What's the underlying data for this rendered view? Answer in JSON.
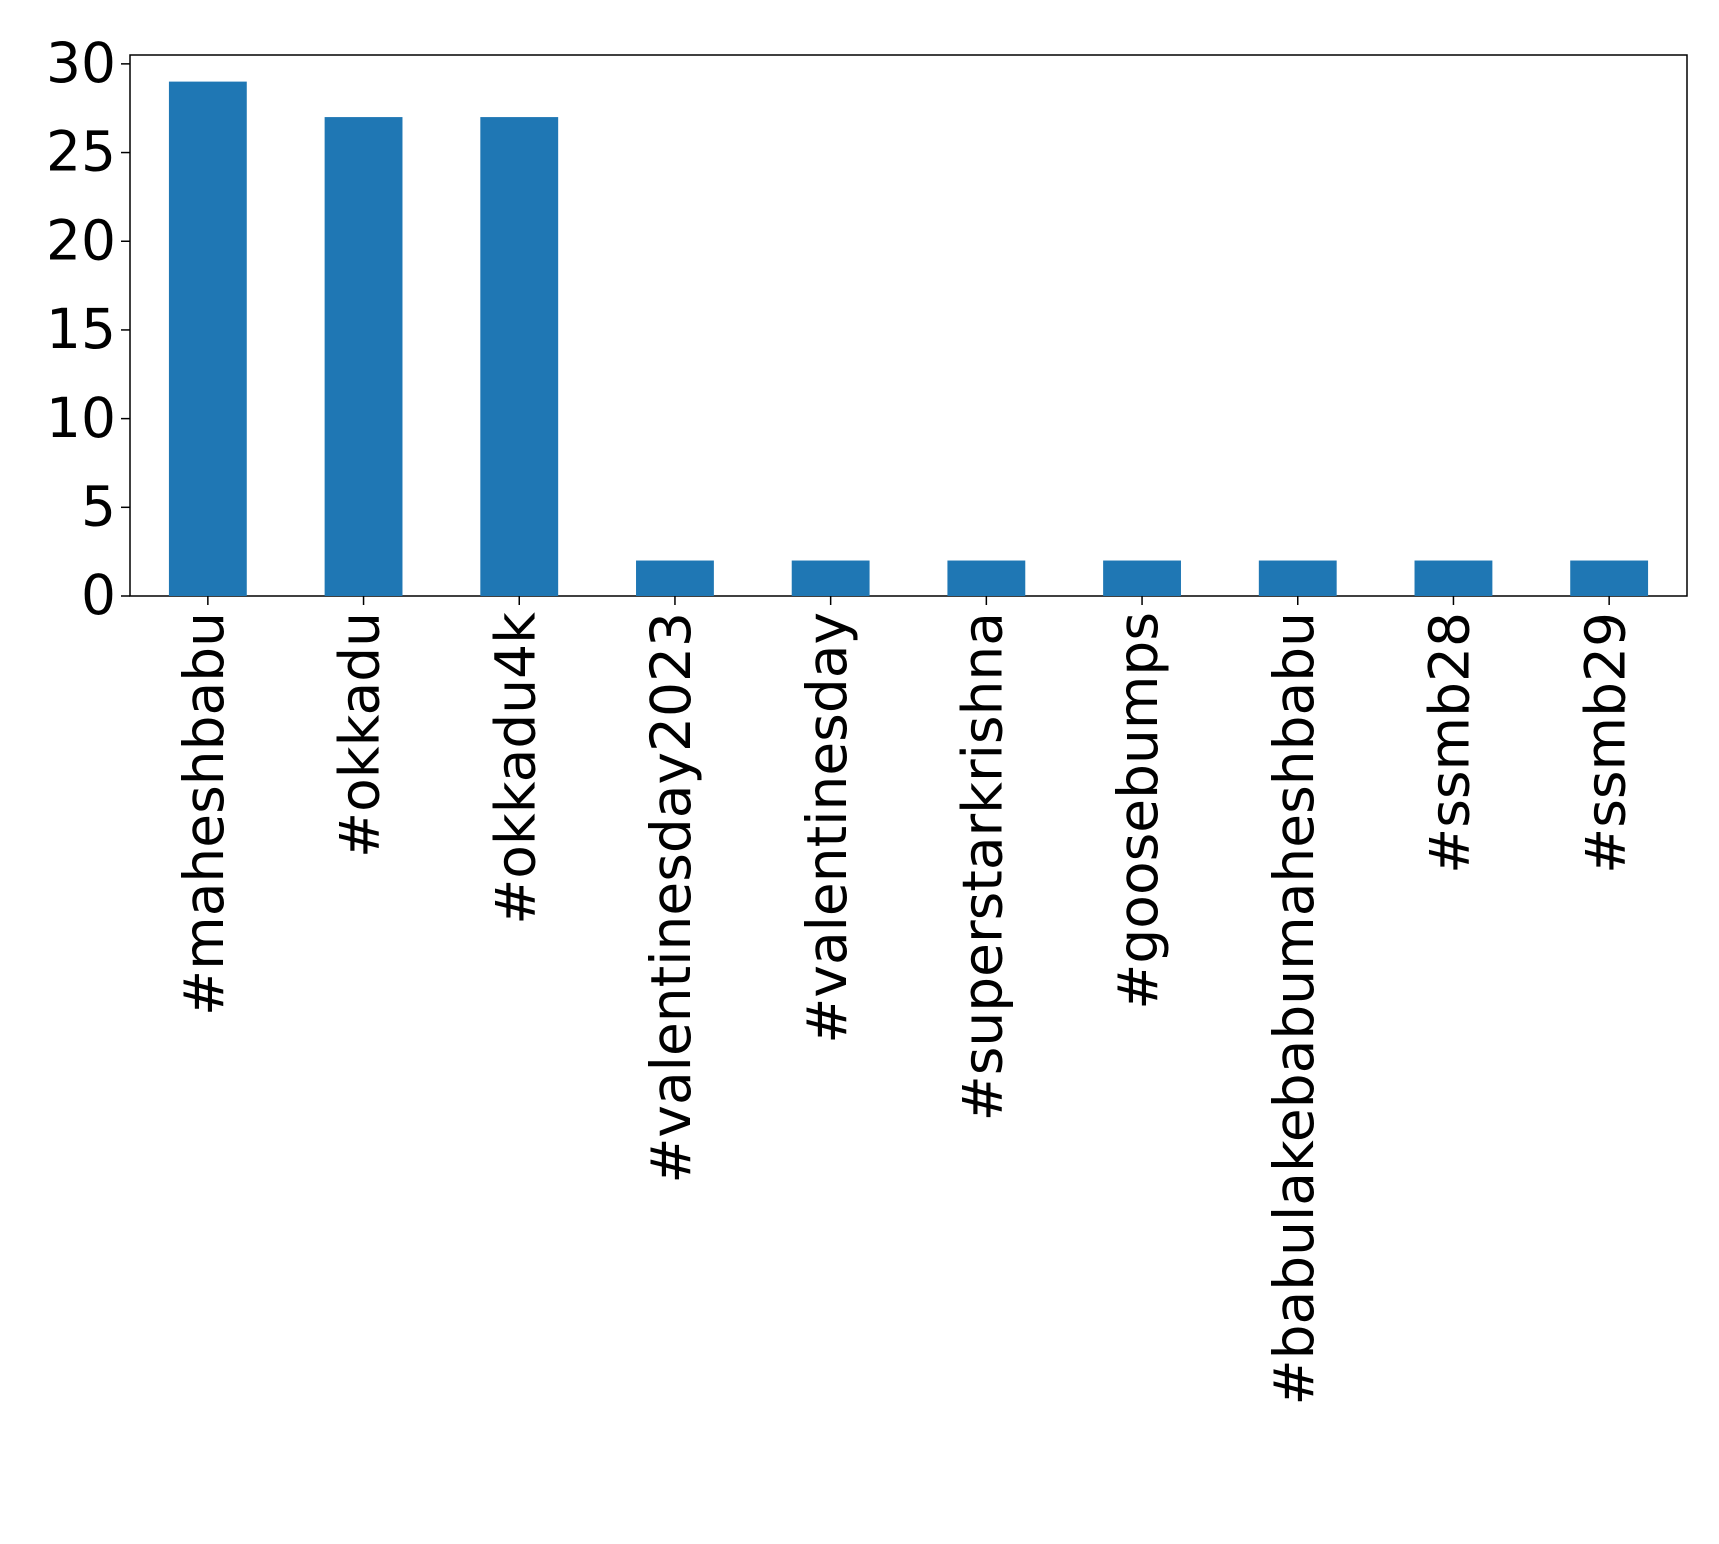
{
  "chart_data": {
    "type": "bar",
    "categories": [
      "#maheshbabu",
      "#okkadu",
      "#okkadu4k",
      "#valentinesday2023",
      "#valentinesday",
      "#superstarkrishna",
      "#goosebumps",
      "#babulakebabumaheshbabu",
      "#ssmb28",
      "#ssmb29"
    ],
    "values": [
      29,
      27,
      27,
      2,
      2,
      2,
      2,
      2,
      2,
      2
    ],
    "color": "#1f77b4",
    "ylim": [
      0,
      30.5
    ],
    "yticks": [
      0,
      5,
      10,
      15,
      20,
      25,
      30
    ],
    "grid": false
  }
}
